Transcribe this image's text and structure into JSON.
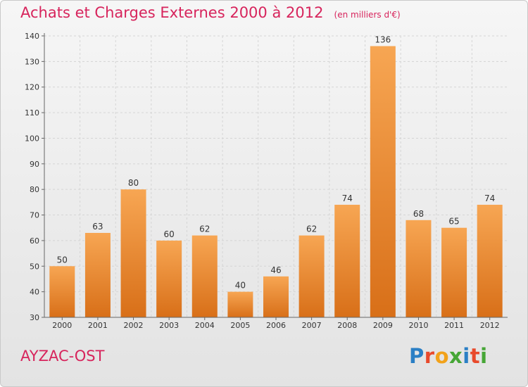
{
  "header": {
    "title": "Achats et Charges Externes 2000 à 2012",
    "unit": "(en milliers d'€)"
  },
  "place": "AYZAC-OST",
  "logo": {
    "text": "Proxiti",
    "letters": [
      {
        "ch": "P",
        "color": "#2a7fc5"
      },
      {
        "ch": "r",
        "color": "#e84a2c"
      },
      {
        "ch": "o",
        "color": "#f2a21a"
      },
      {
        "ch": "x",
        "color": "#46a636"
      },
      {
        "ch": "i",
        "color": "#2a7fc5"
      },
      {
        "ch": "t",
        "color": "#e84a2c"
      },
      {
        "ch": "i",
        "color": "#46a636"
      }
    ]
  },
  "colors": {
    "accent": "#d7245c",
    "bar_top": "#f7a653",
    "bar_bottom": "#d86f18",
    "grid": "#d5d5d5",
    "axis": "#666666",
    "label": "#333333"
  },
  "chart_data": {
    "type": "bar",
    "categories": [
      "2000",
      "2001",
      "2002",
      "2003",
      "2004",
      "2005",
      "2006",
      "2007",
      "2008",
      "2009",
      "2010",
      "2011",
      "2012"
    ],
    "values": [
      50,
      63,
      80,
      60,
      62,
      40,
      46,
      62,
      74,
      136,
      68,
      65,
      74
    ],
    "ylim": [
      30,
      140
    ],
    "yticks": [
      30,
      40,
      50,
      60,
      70,
      80,
      90,
      100,
      110,
      120,
      130,
      140
    ],
    "grid": true,
    "xlabel": "",
    "ylabel": ""
  }
}
